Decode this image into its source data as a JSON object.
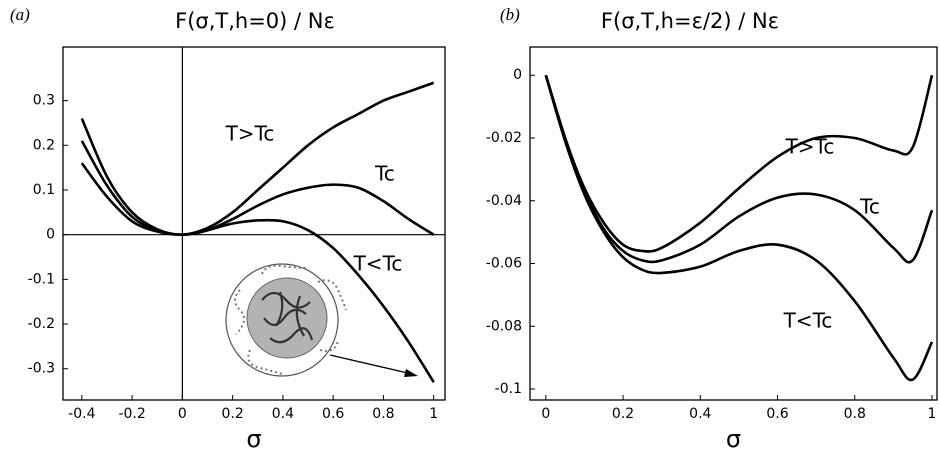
{
  "chart_data": [
    {
      "type": "line",
      "panel": "(a)",
      "title": "F(σ,T,h=0) / Nε",
      "xlabel": "σ",
      "x": [
        -0.4,
        -0.3,
        -0.2,
        -0.1,
        0,
        0.1,
        0.2,
        0.3,
        0.4,
        0.5,
        0.6,
        0.7,
        0.8,
        0.9,
        1.0
      ],
      "series": [
        {
          "name": "T>Tc",
          "color": "#000000",
          "values": [
            0.26,
            0.13,
            0.05,
            0.012,
            0,
            0.015,
            0.05,
            0.1,
            0.15,
            0.2,
            0.24,
            0.27,
            0.3,
            0.32,
            0.34
          ]
        },
        {
          "name": "Tc",
          "color": "#000000",
          "values": [
            0.21,
            0.11,
            0.04,
            0.01,
            0,
            0.01,
            0.035,
            0.065,
            0.09,
            0.105,
            0.112,
            0.105,
            0.075,
            0.035,
            0
          ]
        },
        {
          "name": "T<Tc",
          "color": "#000000",
          "values": [
            0.16,
            0.085,
            0.03,
            0.007,
            0,
            0.01,
            0.025,
            0.032,
            0.03,
            0.01,
            -0.03,
            -0.09,
            -0.16,
            -0.24,
            -0.33
          ]
        }
      ],
      "xlim": [
        -0.475,
        1.045
      ],
      "xticks": [
        -0.4,
        -0.2,
        0,
        0.2,
        0.4,
        0.6,
        0.8,
        1
      ],
      "ylim": [
        -0.37,
        0.42
      ],
      "yticks": [
        -0.3,
        -0.2,
        -0.1,
        0,
        0.1,
        0.2,
        0.3
      ],
      "zero_axes": true
    },
    {
      "type": "line",
      "panel": "(b)",
      "title": "F(σ,T,h=ε/2) / Nε",
      "xlabel": "σ",
      "x": [
        0,
        0.05,
        0.1,
        0.15,
        0.2,
        0.25,
        0.3,
        0.4,
        0.5,
        0.6,
        0.7,
        0.8,
        0.9,
        0.95,
        1.0
      ],
      "series": [
        {
          "name": "T>Tc",
          "color": "#000000",
          "values": [
            0,
            -0.02,
            -0.036,
            -0.047,
            -0.054,
            -0.056,
            -0.055,
            -0.047,
            -0.036,
            -0.026,
            -0.02,
            -0.02,
            -0.024,
            -0.023,
            0
          ]
        },
        {
          "name": "Tc",
          "color": "#000000",
          "values": [
            0,
            -0.02,
            -0.037,
            -0.049,
            -0.056,
            -0.059,
            -0.059,
            -0.054,
            -0.045,
            -0.039,
            -0.038,
            -0.043,
            -0.055,
            -0.059,
            -0.043
          ]
        },
        {
          "name": "T<Tc",
          "color": "#000000",
          "values": [
            0,
            -0.021,
            -0.038,
            -0.05,
            -0.058,
            -0.062,
            -0.063,
            -0.061,
            -0.056,
            -0.054,
            -0.059,
            -0.072,
            -0.09,
            -0.097,
            -0.085
          ]
        }
      ],
      "xlim": [
        -0.041,
        1.013
      ],
      "xticks": [
        0,
        0.2,
        0.4,
        0.6,
        0.8,
        1
      ],
      "ylim": [
        -0.1035,
        0.009
      ],
      "yticks": [
        -0.1,
        -0.08,
        -0.06,
        -0.04,
        -0.02,
        0
      ],
      "zero_axes": false
    }
  ]
}
